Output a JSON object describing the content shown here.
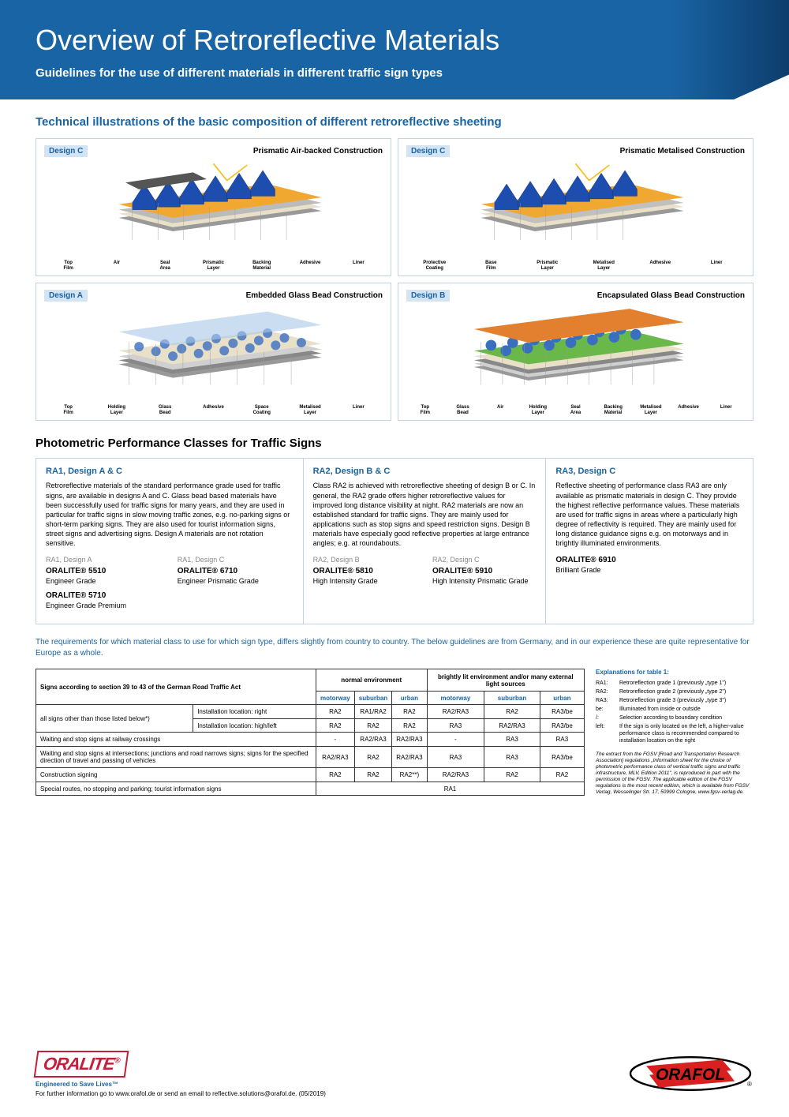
{
  "header": {
    "title": "Overview of Retroreflective Materials",
    "subtitle": "Guidelines for the use of different materials in different traffic sign types"
  },
  "illustrations_title": "Technical illustrations of the basic composition of different retroreflective sheeting",
  "diagrams": [
    {
      "badge": "Design C",
      "title": "Prismatic Air-backed Construction",
      "colors": {
        "top": "#555",
        "prism": "#1e4db0",
        "base": "#f0a830",
        "back": "#bbb",
        "adh": "#e8e0c8",
        "liner": "#999"
      },
      "layers": [
        "Top Film",
        "Air",
        "Seal Area",
        "Prismatic Layer",
        "Backing Material",
        "Adhesive",
        "Liner"
      ]
    },
    {
      "badge": "Design C",
      "title": "Prismatic Metalised Construction",
      "colors": {
        "top": "#555",
        "prism": "#1e4db0",
        "base": "#f0a830",
        "back": "#c0c0c0",
        "adh": "#e8e0c8",
        "liner": "#999"
      },
      "layers": [
        "Protective Coating",
        "Base Film",
        "Prismatic Layer",
        "Metalised Layer",
        "Adhesive",
        "Liner"
      ]
    },
    {
      "badge": "Design A",
      "title": "Embedded Glass Bead Construction",
      "colors": {
        "top": "#a8c8e8",
        "bead": "#3a6fc0",
        "base": "#e8e0c8",
        "adh": "#d0d0d0",
        "metal": "#888",
        "liner": "#999"
      },
      "layers": [
        "Top Film",
        "Holding Layer",
        "Glass Bead",
        "Adhesive",
        "Space Coating",
        "Metalised Layer",
        "Liner"
      ]
    },
    {
      "badge": "Design B",
      "title": "Encapsulated Glass Bead Construction",
      "colors": {
        "top": "#e28030",
        "bead": "#3a6fc0",
        "hold": "#6bb84a",
        "back": "#e8e0c8",
        "metal": "#888",
        "adh": "#d0d0d0",
        "liner": "#999"
      },
      "layers": [
        "Top Film",
        "Glass Bead",
        "Air",
        "Holding Layer",
        "Seal Area",
        "Backing Material",
        "Metalised Layer",
        "Adhesive",
        "Liner"
      ]
    }
  ],
  "classes_title": "Photometric Performance Classes for Traffic Signs",
  "classes": [
    {
      "title": "RA1, Design A & C",
      "text": "Retroreflective materials of the standard performance grade used for traffic signs, are available in designs A and C. Glass bead based materials have been successfully used for traffic signs for many years, and they are used in particular for traffic signs in slow moving traffic zones, e.g. no-parking signs or short-term parking signs. They are also used for tourist information signs, street signs and advertising signs. Design A materials are not rotation sensitive.",
      "cols": [
        {
          "sub": "RA1, Design A",
          "items": [
            {
              "name": "ORALITE® 5510",
              "grade": "Engineer Grade"
            },
            {
              "name": "ORALITE® 5710",
              "grade": "Engineer Grade Premium"
            }
          ]
        },
        {
          "sub": "RA1, Design C",
          "items": [
            {
              "name": "ORALITE® 6710",
              "grade": "Engineer Prismatic Grade"
            }
          ]
        }
      ]
    },
    {
      "title": "RA2, Design B & C",
      "text": "Class RA2 is achieved with retroreflective sheeting of design B or C. In general, the RA2 grade offers higher retroreflective values for improved long distance visibility at night. RA2 materials are now an established standard for traffic signs. They are mainly used for applications such as stop signs and speed restriction signs. Design B materials have especially good reflective properties at large entrance angles; e.g. at roundabouts.",
      "cols": [
        {
          "sub": "RA2, Design B",
          "items": [
            {
              "name": "ORALITE® 5810",
              "grade": "High Intensity Grade"
            }
          ]
        },
        {
          "sub": "RA2, Design C",
          "items": [
            {
              "name": "ORALITE® 5910",
              "grade": "High Intensity Prismatic Grade"
            }
          ]
        }
      ]
    },
    {
      "title": "RA3, Design C",
      "text": "Reflective sheeting of performance class RA3 are only available as prismatic materials in design C. They provide the highest reflective performance values. These materials are used for traffic signs in areas where a particularly high degree of reflectivity is required. They are mainly used for long distance guidance signs e.g. on motorways and in brightly illuminated environments.",
      "cols": [
        {
          "sub": "",
          "items": [
            {
              "name": "ORALITE® 6910",
              "grade": "Brilliant Grade"
            }
          ]
        }
      ]
    }
  ],
  "note": "The requirements for which material class to use for which sign type, differs slightly from country to country. The below guidelines are from Germany, and in our experience these are quite representative for Europe as a whole.",
  "table": {
    "header_main": "Signs according to section 39 to 43 of the German Road Traffic Act",
    "env1": "normal environment",
    "env2": "brightly lit environment and/or many external light sources",
    "sub_headers": [
      "motorway",
      "suburban",
      "urban",
      "motorway",
      "suburban",
      "urban"
    ],
    "rows": [
      {
        "label": "all signs other than those listed below*)",
        "sub1": "Installation location: right",
        "cells": [
          "RA2",
          "RA1/RA2",
          "RA2",
          "RA2/RA3",
          "RA2",
          "RA3/be"
        ]
      },
      {
        "sub2": "Installation location: high/left",
        "cells": [
          "RA2",
          "RA2",
          "RA2",
          "RA3",
          "RA2/RA3",
          "RA3/be"
        ]
      },
      {
        "label": "Waiting and stop signs at railway crossings",
        "cells": [
          "-",
          "RA2/RA3",
          "RA2/RA3",
          "-",
          "RA3",
          "RA3"
        ]
      },
      {
        "label": "Waiting and stop signs at intersections; junctions and road narrows signs; signs for the specified direction of travel and passing of vehicles",
        "cells": [
          "RA2/RA3",
          "RA2",
          "RA2/RA3",
          "RA3",
          "RA3",
          "RA3/be"
        ]
      },
      {
        "label": "Construction signing",
        "cells": [
          "RA2",
          "RA2",
          "RA2**)",
          "RA2/RA3",
          "RA2",
          "RA2"
        ]
      },
      {
        "label": "Special routes, no stopping and parking; tourist information signs",
        "span": "RA1"
      }
    ]
  },
  "explanations": {
    "title": "Explanations for table 1:",
    "items": [
      {
        "k": "RA1:",
        "v": "Retroreflection grade 1 (previously „type 1\")"
      },
      {
        "k": "RA2:",
        "v": "Retroreflection grade 2 (previously „type 2\")"
      },
      {
        "k": "RA3:",
        "v": "Retroreflection grade 3 (previously „type 3\")"
      },
      {
        "k": "be:",
        "v": "Illuminated from inside or outside"
      },
      {
        "k": "/:",
        "v": "Selection according to boundary condition"
      },
      {
        "k": "left:",
        "v": "If the sign is only located on the left, a higher-value performance class is recommended compared to installation location on the right"
      }
    ],
    "footnote": "The extract from the FGSV [Road and Transportation Research Association] regulations „Information sheet for the choice of photometric performance class of vertical traffic signs and traffic infrastructure, MLV, Edition 2011\", is reproduced in part with the permission of the FGSV. The applicable edition of the FGSV regulations is the most recent edition, which is available from FGSV Verlag, Wesselinger Str. 17, 50999 Cologne, www.fgsv-verlag.de."
  },
  "footer": {
    "oralite": "ORALITE",
    "tagline": "Engineered to Save Lives™",
    "info": "For further information go to www.orafol.de or send an email to reflective.solutions@orafol.de. (05/2019)",
    "orafol": "ORAFOL"
  }
}
